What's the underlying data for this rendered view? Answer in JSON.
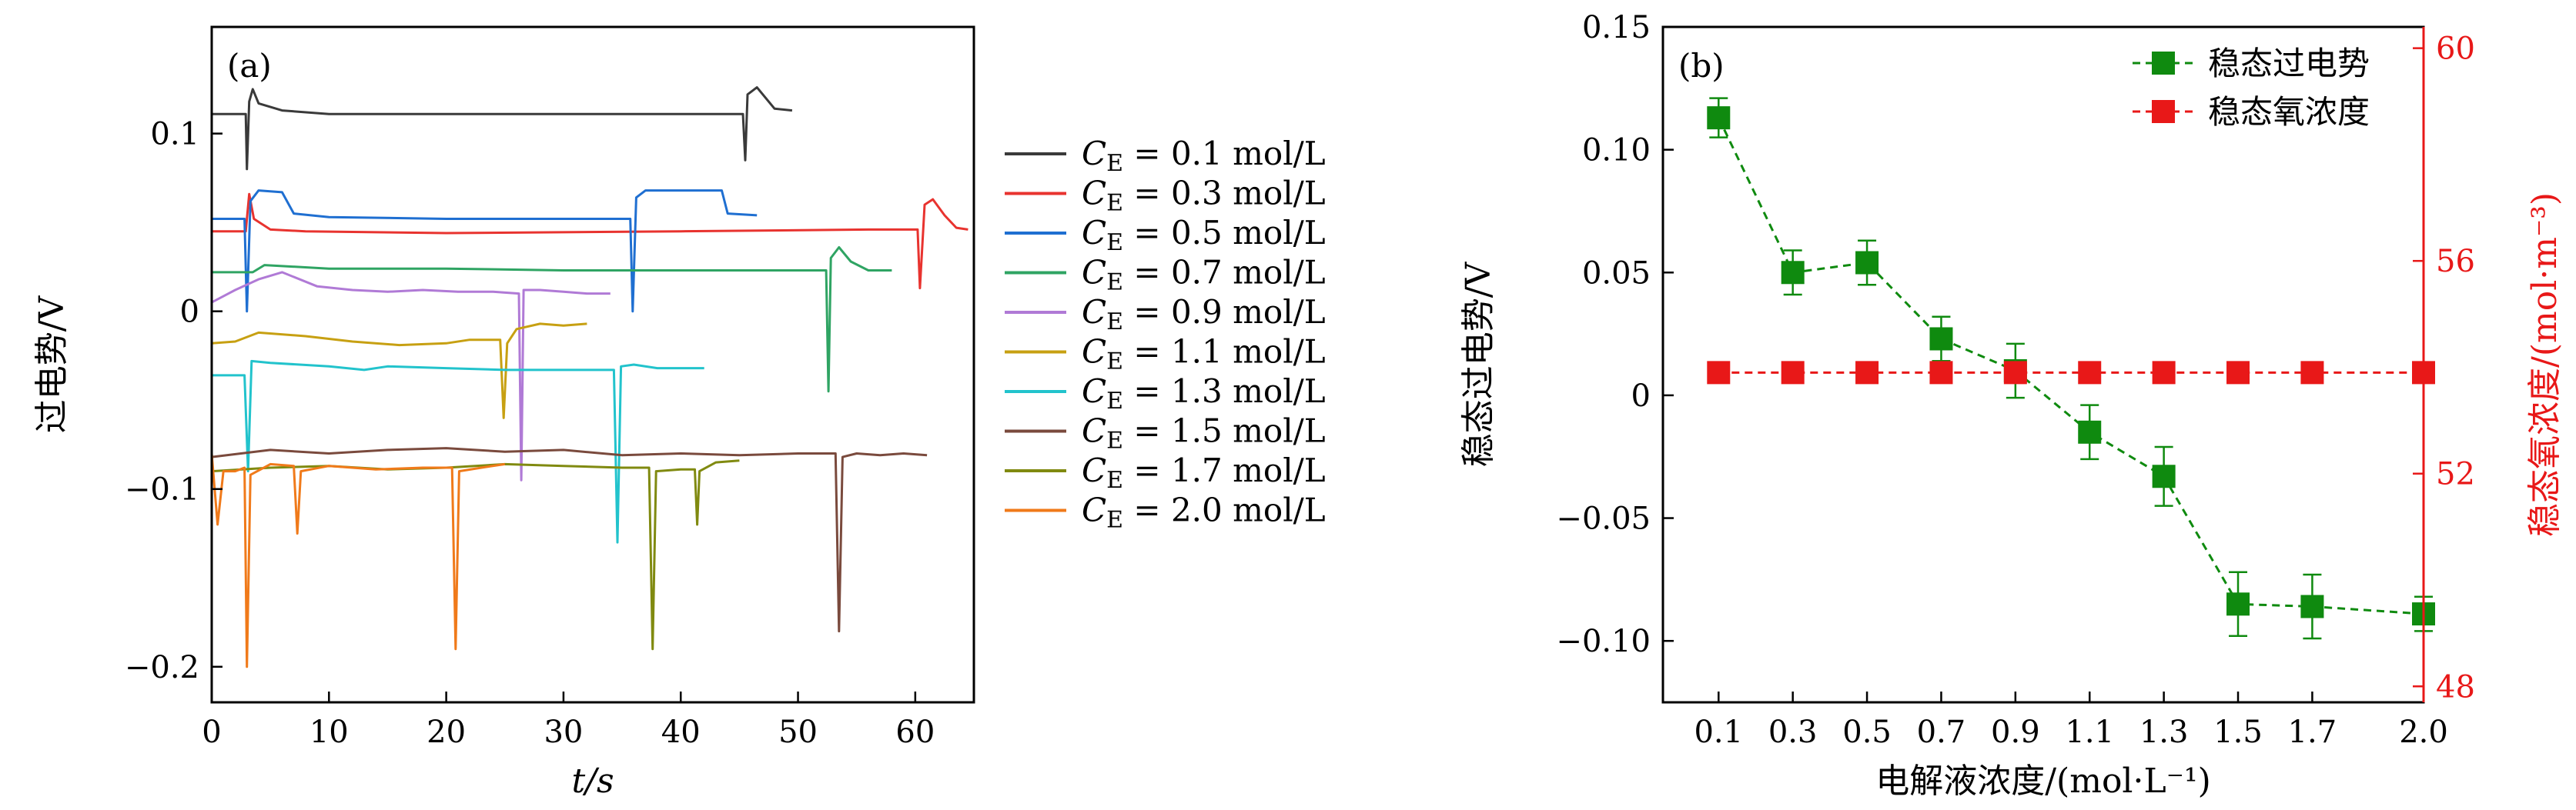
{
  "chart_data": [
    {
      "type": "line",
      "panel_label": "(a)",
      "xlabel": "t/s",
      "ylabel": "过电势/V",
      "xlim": [
        0,
        65
      ],
      "ylim": [
        -0.22,
        0.16
      ],
      "xticks": [
        0,
        10,
        20,
        30,
        40,
        50,
        60
      ],
      "xtick_labels": [
        "0",
        "10",
        "20",
        "30",
        "40",
        "50",
        "60"
      ],
      "yticks": [
        -0.2,
        -0.1,
        0,
        0.1
      ],
      "ytick_labels": [
        "−0.2",
        "−0.1",
        "0",
        "0.1"
      ],
      "legend_position": "right-outside",
      "series": [
        {
          "name": "C_E = 0.1 mol/L",
          "legend_value": "= 0.1 mol/L",
          "color": "#3a3a3a",
          "x": [
            0,
            2.9,
            3.0,
            3.2,
            3.5,
            4,
            6,
            10,
            20,
            30,
            40,
            45.3,
            45.5,
            45.7,
            46.5,
            48,
            49.5
          ],
          "y": [
            0.111,
            0.111,
            0.08,
            0.118,
            0.125,
            0.117,
            0.113,
            0.111,
            0.111,
            0.111,
            0.111,
            0.111,
            0.085,
            0.122,
            0.126,
            0.114,
            0.113
          ]
        },
        {
          "name": "C_E = 0.3 mol/L",
          "legend_value": "= 0.3 mol/L",
          "color": "#e8332f",
          "x": [
            0,
            2.9,
            3.2,
            3.6,
            5,
            8,
            20,
            40,
            56,
            60.2,
            60.4,
            60.8,
            61.5,
            62.5,
            63.5,
            64.5
          ],
          "y": [
            0.045,
            0.045,
            0.066,
            0.052,
            0.046,
            0.045,
            0.044,
            0.045,
            0.046,
            0.046,
            0.013,
            0.06,
            0.063,
            0.054,
            0.047,
            0.046
          ]
        },
        {
          "name": "C_E = 0.5 mol/L",
          "legend_value": "= 0.5 mol/L",
          "color": "#1f6fd1",
          "x": [
            0,
            2.8,
            3.0,
            3.3,
            4,
            6,
            7,
            10,
            20,
            30,
            35.7,
            35.9,
            36.2,
            37,
            40,
            43.5,
            44,
            46.5
          ],
          "y": [
            0.052,
            0.052,
            0.0,
            0.062,
            0.068,
            0.067,
            0.055,
            0.053,
            0.052,
            0.052,
            0.052,
            0.0,
            0.064,
            0.068,
            0.068,
            0.068,
            0.055,
            0.054
          ]
        },
        {
          "name": "C_E = 0.7 mol/L",
          "legend_value": "= 0.7 mol/L",
          "color": "#2fa463",
          "x": [
            0,
            3.5,
            4.5,
            10,
            20,
            30,
            40,
            52.4,
            52.6,
            52.8,
            53.5,
            54.5,
            56,
            58
          ],
          "y": [
            0.022,
            0.022,
            0.026,
            0.024,
            0.024,
            0.023,
            0.023,
            0.023,
            -0.045,
            0.03,
            0.036,
            0.028,
            0.023,
            0.023
          ]
        },
        {
          "name": "C_E = 0.9 mol/L",
          "legend_value": "= 0.9 mol/L",
          "color": "#b07ad6",
          "x": [
            0,
            2,
            4,
            6,
            9,
            12,
            15,
            18,
            21,
            24,
            26.2,
            26.4,
            26.6,
            28,
            30,
            32,
            34
          ],
          "y": [
            0.005,
            0.012,
            0.018,
            0.022,
            0.014,
            0.012,
            0.011,
            0.012,
            0.011,
            0.011,
            0.01,
            -0.095,
            0.012,
            0.012,
            0.011,
            0.01,
            0.01
          ]
        },
        {
          "name": "C_E = 1.1 mol/L",
          "legend_value": "= 1.1 mol/L",
          "color": "#c7a012",
          "x": [
            0,
            2,
            4,
            8,
            12,
            16,
            20,
            22,
            24.6,
            24.9,
            25.2,
            26,
            28,
            30,
            32
          ],
          "y": [
            -0.018,
            -0.017,
            -0.012,
            -0.014,
            -0.017,
            -0.019,
            -0.018,
            -0.016,
            -0.016,
            -0.06,
            -0.018,
            -0.01,
            -0.007,
            -0.008,
            -0.007
          ]
        },
        {
          "name": "C_E = 1.3 mol/L",
          "legend_value": "= 1.3 mol/L",
          "color": "#22c3cc",
          "x": [
            0,
            2,
            2.8,
            3.1,
            3.4,
            5,
            10,
            13,
            15,
            20,
            25,
            30,
            34.3,
            34.6,
            34.9,
            36,
            38,
            40,
            42
          ],
          "y": [
            -0.036,
            -0.036,
            -0.036,
            -0.09,
            -0.028,
            -0.029,
            -0.031,
            -0.033,
            -0.031,
            -0.032,
            -0.033,
            -0.033,
            -0.033,
            -0.13,
            -0.031,
            -0.03,
            -0.032,
            -0.032,
            -0.032
          ]
        },
        {
          "name": "C_E = 1.5 mol/L",
          "legend_value": "= 1.5 mol/L",
          "color": "#7a4a3d",
          "x": [
            0,
            5,
            10,
            15,
            20,
            25,
            30,
            35,
            40,
            45,
            50,
            53.2,
            53.5,
            53.8,
            55,
            57,
            59,
            61
          ],
          "y": [
            -0.082,
            -0.078,
            -0.08,
            -0.078,
            -0.077,
            -0.079,
            -0.078,
            -0.081,
            -0.08,
            -0.081,
            -0.08,
            -0.08,
            -0.18,
            -0.082,
            -0.08,
            -0.081,
            -0.08,
            -0.081
          ]
        },
        {
          "name": "C_E = 1.7 mol/L",
          "legend_value": "= 1.7 mol/L",
          "color": "#808a10",
          "x": [
            0,
            5,
            10,
            15,
            20,
            25,
            30,
            35,
            37.3,
            37.6,
            37.9,
            40,
            41.2,
            41.4,
            41.6,
            43,
            45
          ],
          "y": [
            -0.09,
            -0.088,
            -0.087,
            -0.089,
            -0.088,
            -0.086,
            -0.087,
            -0.088,
            -0.088,
            -0.19,
            -0.09,
            -0.089,
            -0.089,
            -0.12,
            -0.09,
            -0.085,
            -0.084
          ]
        },
        {
          "name": "C_E = 2.0 mol/L",
          "legend_value": "= 2.0 mol/L",
          "color": "#f07a1a",
          "x": [
            0,
            0.5,
            1,
            2,
            2.8,
            3.0,
            3.3,
            5,
            7,
            7.3,
            7.6,
            10,
            14,
            18,
            20.5,
            20.8,
            21.1,
            23,
            25
          ],
          "y": [
            -0.08,
            -0.12,
            -0.09,
            -0.09,
            -0.088,
            -0.2,
            -0.092,
            -0.086,
            -0.087,
            -0.125,
            -0.09,
            -0.087,
            -0.089,
            -0.088,
            -0.088,
            -0.19,
            -0.09,
            -0.088,
            -0.086
          ]
        }
      ]
    },
    {
      "type": "line",
      "panel_label": "(b)",
      "xlabel": "电解液浓度/(mol·L⁻¹)",
      "ylabel": "稳态过电势/V",
      "ylabel_right": "稳态氧浓度/(mol·m⁻³)",
      "xlim": [
        -0.05,
        2.0
      ],
      "ylim": [
        -0.125,
        0.15
      ],
      "ylim_right": [
        47.7,
        60.4
      ],
      "xticks": [
        0.1,
        0.3,
        0.5,
        0.7,
        0.9,
        1.1,
        1.3,
        1.5,
        1.7,
        2.0
      ],
      "xtick_labels": [
        "0.1",
        "0.3",
        "0.5",
        "0.7",
        "0.9",
        "1.1",
        "1.3",
        "1.5",
        "1.7",
        "2.0"
      ],
      "yticks": [
        -0.1,
        -0.05,
        0,
        0.05,
        0.1,
        0.15
      ],
      "ytick_labels": [
        "−0.10",
        "−0.05",
        "0",
        "0.05",
        "0.10",
        "0.15"
      ],
      "yticks_right": [
        48,
        52,
        56,
        60
      ],
      "ytick_labels_right": [
        "48",
        "52",
        "56",
        "60"
      ],
      "legend_position": "top-right",
      "series": [
        {
          "name": "稳态过电势",
          "color": "#0f8a0f",
          "axis": "left",
          "x": [
            0.1,
            0.3,
            0.5,
            0.7,
            0.9,
            1.1,
            1.3,
            1.5,
            1.7,
            2.0
          ],
          "y": [
            0.113,
            0.05,
            0.054,
            0.023,
            0.01,
            -0.015,
            -0.033,
            -0.085,
            -0.086,
            -0.089
          ],
          "err": [
            0.008,
            0.009,
            0.009,
            0.009,
            0.011,
            0.011,
            0.012,
            0.013,
            0.013,
            0.007
          ]
        },
        {
          "name": "稳态氧浓度",
          "color": "#e81818",
          "axis": "right",
          "x": [
            0.1,
            0.3,
            0.5,
            0.7,
            0.9,
            1.1,
            1.3,
            1.5,
            1.7,
            2.0
          ],
          "y": [
            53.9,
            53.9,
            53.9,
            53.9,
            53.9,
            53.9,
            53.9,
            53.9,
            53.9,
            53.9
          ]
        }
      ]
    }
  ]
}
